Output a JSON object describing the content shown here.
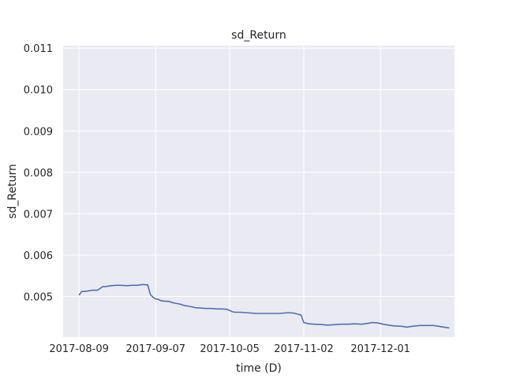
{
  "chart_data": {
    "type": "line",
    "title": "sd_Return",
    "xlabel": "time (D)",
    "ylabel": "sd_Return",
    "background_color": "#eaeaf2",
    "line_color": "#4c72b0",
    "grid": true,
    "xlim": [
      "2017-08-03",
      "2017-12-29"
    ],
    "ylim": [
      0.00402,
      0.01106
    ],
    "x_ticks": [
      "2017-08-09",
      "2017-09-07",
      "2017-10-05",
      "2017-11-02",
      "2017-12-01"
    ],
    "y_ticks": [
      0.005,
      0.006,
      0.007,
      0.008,
      0.009,
      0.01,
      0.011
    ],
    "y_tick_labels": [
      "0.005",
      "0.006",
      "0.007",
      "0.008",
      "0.009",
      "0.010",
      "0.011"
    ],
    "series": [
      {
        "x": [
          "2017-08-09",
          "2017-08-10",
          "2017-08-12",
          "2017-08-14",
          "2017-08-16",
          "2017-08-18",
          "2017-08-19",
          "2017-08-21",
          "2017-08-23",
          "2017-08-25",
          "2017-08-27",
          "2017-08-29",
          "2017-08-31",
          "2017-09-02",
          "2017-09-04",
          "2017-09-05",
          "2017-09-06",
          "2017-09-07",
          "2017-09-08",
          "2017-09-09",
          "2017-09-10",
          "2017-09-12",
          "2017-09-14",
          "2017-09-16",
          "2017-09-18",
          "2017-09-20",
          "2017-09-22",
          "2017-09-24",
          "2017-09-26",
          "2017-09-28",
          "2017-09-30",
          "2017-10-02",
          "2017-10-04",
          "2017-10-06",
          "2017-10-07",
          "2017-10-09",
          "2017-10-11",
          "2017-10-13",
          "2017-10-15",
          "2017-10-18",
          "2017-10-21",
          "2017-10-24",
          "2017-10-27",
          "2017-10-29",
          "2017-10-31",
          "2017-11-01",
          "2017-11-02",
          "2017-11-04",
          "2017-11-06",
          "2017-11-09",
          "2017-11-11",
          "2017-11-14",
          "2017-11-16",
          "2017-11-19",
          "2017-11-21",
          "2017-11-24",
          "2017-11-26",
          "2017-11-28",
          "2017-11-30",
          "2017-12-02",
          "2017-12-04",
          "2017-12-06",
          "2017-12-09",
          "2017-12-11",
          "2017-12-13",
          "2017-12-16",
          "2017-12-19",
          "2017-12-21",
          "2017-12-23",
          "2017-12-25",
          "2017-12-27"
        ],
        "y": [
          0.00503,
          0.00512,
          0.00513,
          0.00515,
          0.00515,
          0.00524,
          0.00524,
          0.00526,
          0.00527,
          0.00527,
          0.00526,
          0.00527,
          0.00527,
          0.00529,
          0.00528,
          0.00505,
          0.00498,
          0.00494,
          0.00493,
          0.0049,
          0.00489,
          0.00488,
          0.00484,
          0.00482,
          0.00478,
          0.00476,
          0.00473,
          0.00472,
          0.00471,
          0.00471,
          0.0047,
          0.0047,
          0.00469,
          0.00463,
          0.00462,
          0.00462,
          0.00461,
          0.0046,
          0.00459,
          0.00459,
          0.00459,
          0.00459,
          0.00461,
          0.0046,
          0.00457,
          0.00455,
          0.00437,
          0.00434,
          0.00433,
          0.00432,
          0.00431,
          0.00432,
          0.00433,
          0.00433,
          0.00434,
          0.00433,
          0.00435,
          0.00437,
          0.00436,
          0.00433,
          0.00431,
          0.00429,
          0.00428,
          0.00426,
          0.00428,
          0.0043,
          0.0043,
          0.0043,
          0.00428,
          0.00426,
          0.00424
        ]
      }
    ]
  }
}
